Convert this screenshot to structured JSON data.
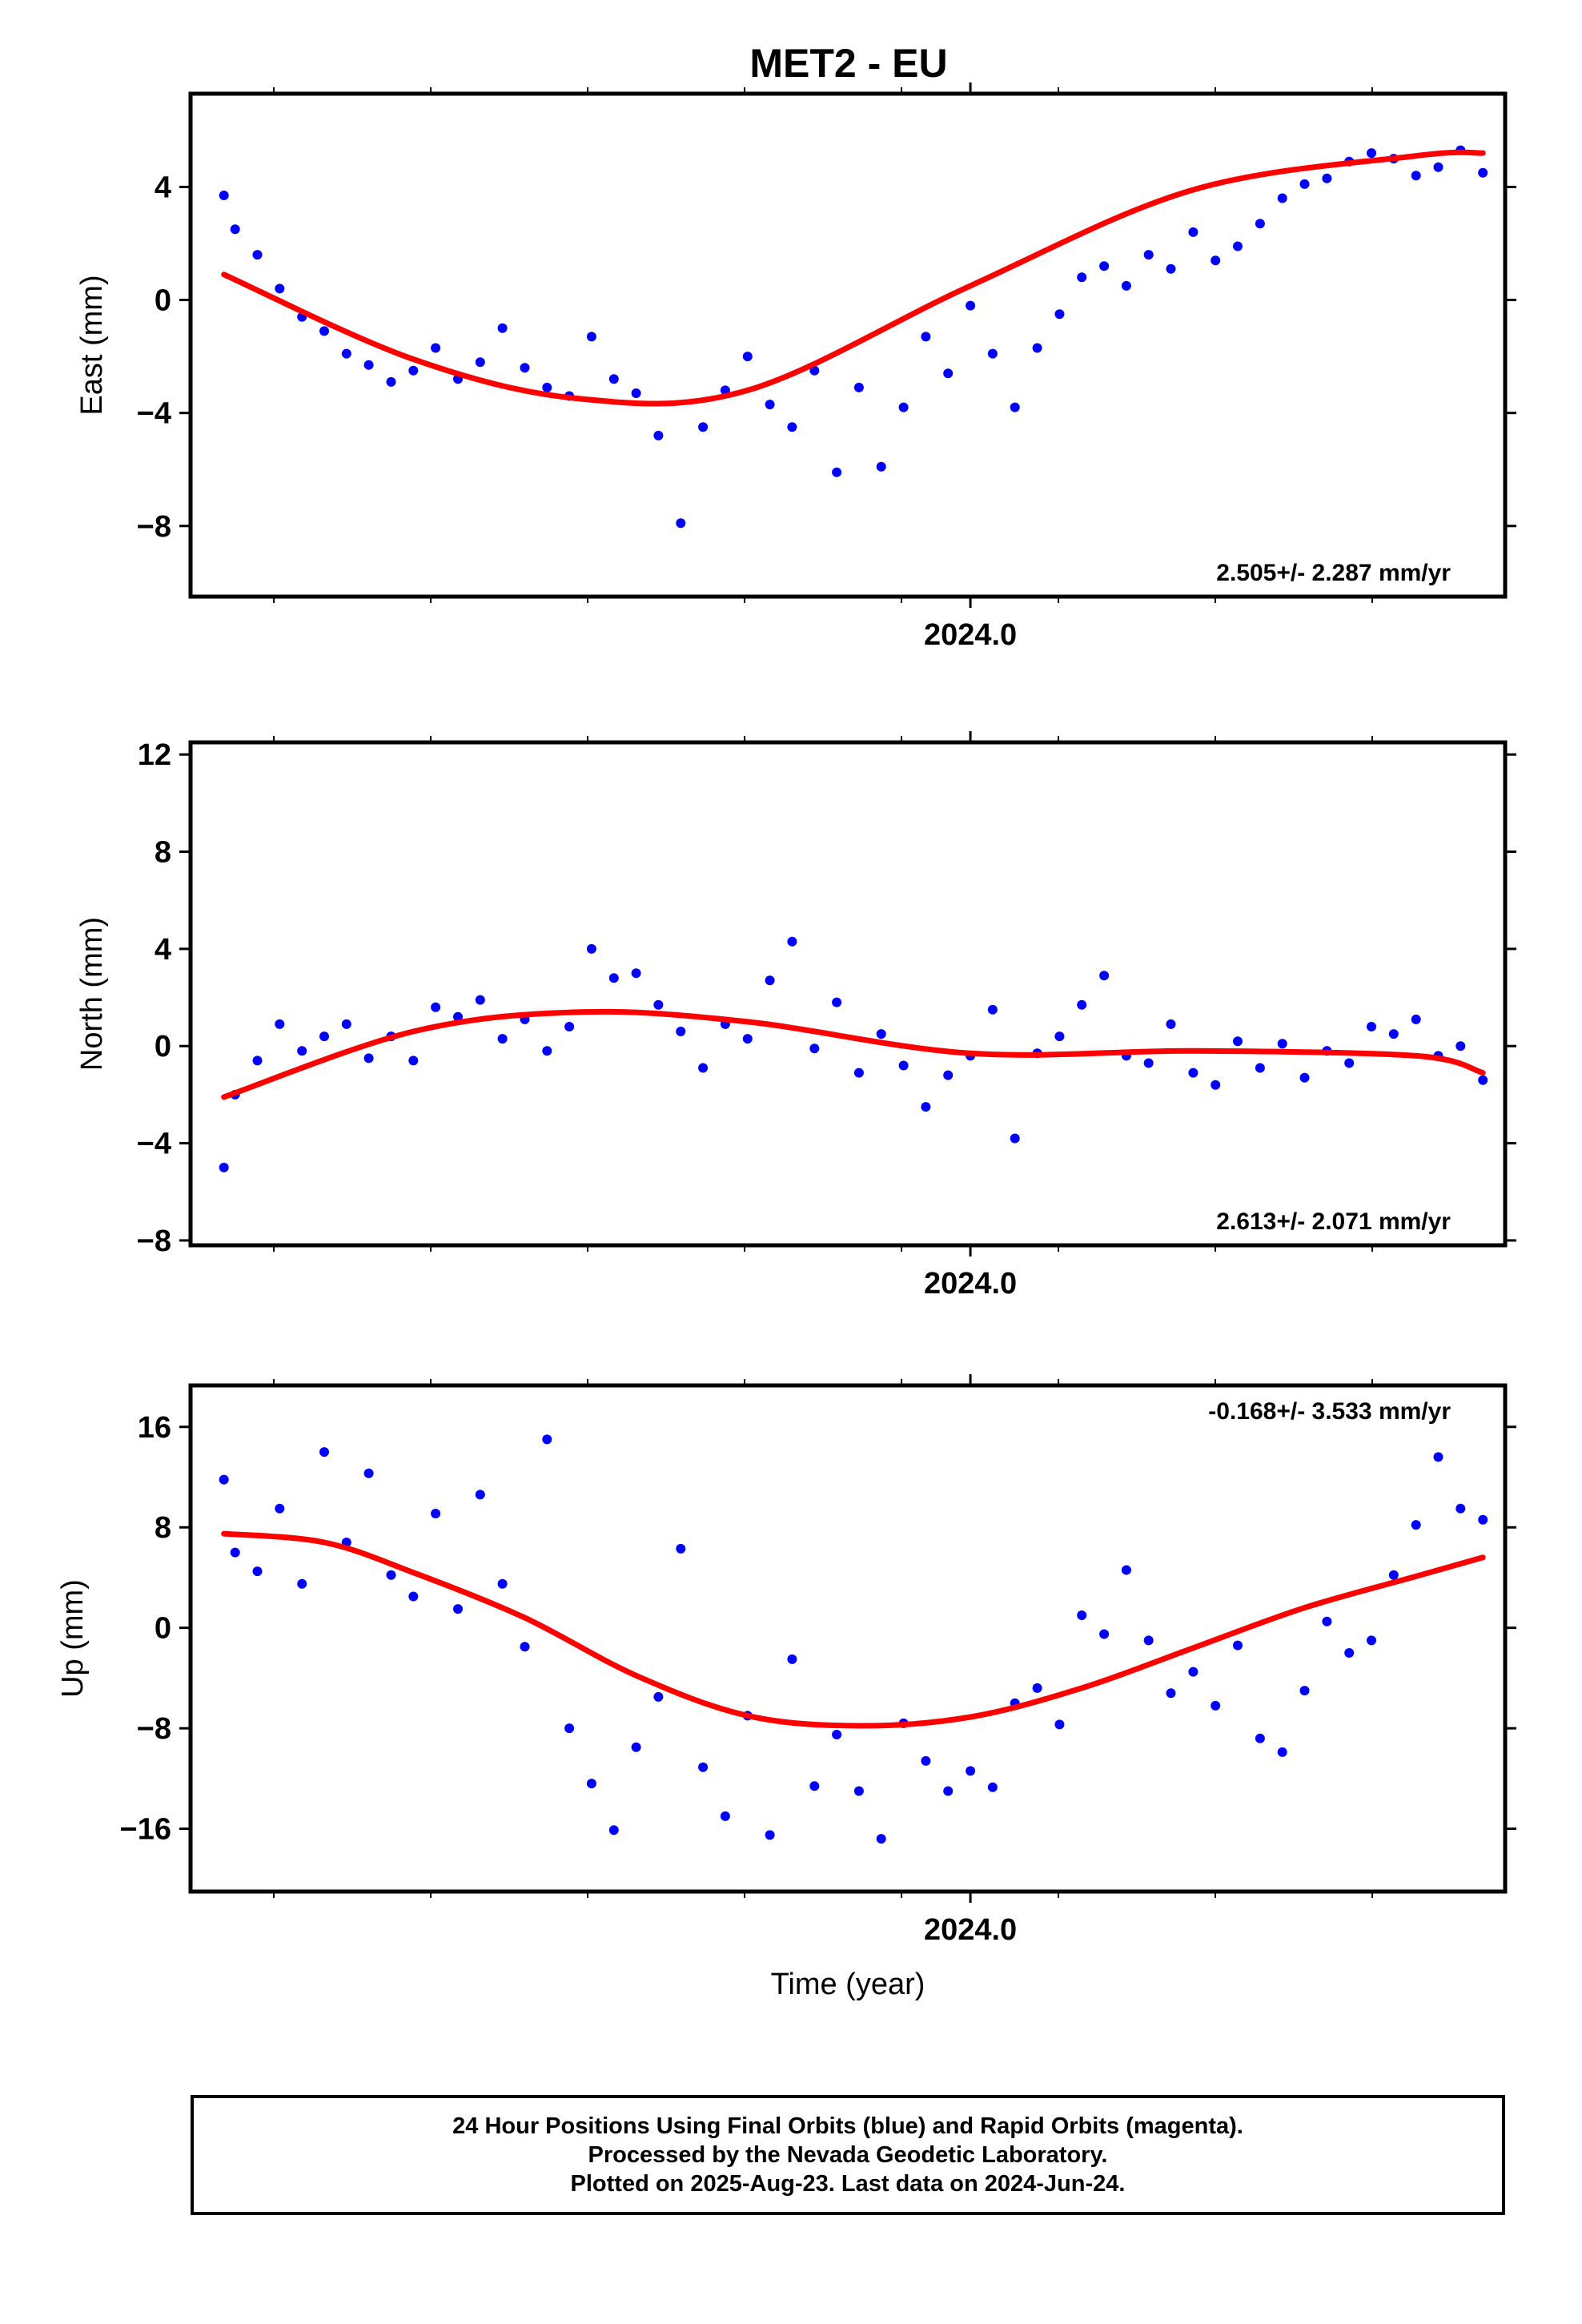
{
  "chart_data": {
    "type": "scatter",
    "title": "MET2 - EU",
    "xlabel": "Time (year)",
    "x_tick_label": "2024.0",
    "xlim": [
      2023.3,
      2024.48
    ],
    "panels": [
      {
        "ylabel": "East (mm)",
        "ylim": [
          -10.5,
          7.3
        ],
        "yticks": [
          4,
          0,
          -4,
          -8
        ],
        "yticks_labels": [
          "4",
          "0",
          "−4",
          "−8"
        ],
        "rate": "2.505+/- 2.287 mm/yr",
        "rate_position": "bottom-right",
        "fit_color": "#ff0000",
        "points_color": "#0000ff",
        "fit": {
          "x": [
            2023.33,
            2023.5,
            2023.65,
            2023.8,
            2024.0,
            2024.2,
            2024.4,
            2024.46
          ],
          "y": [
            0.9,
            -2.1,
            -3.5,
            -3.2,
            0.5,
            3.9,
            5.1,
            5.2
          ]
        },
        "points": {
          "x": [
            2023.33,
            2023.34,
            2023.36,
            2023.38,
            2023.4,
            2023.42,
            2023.44,
            2023.46,
            2023.48,
            2023.5,
            2023.52,
            2023.54,
            2023.56,
            2023.58,
            2023.6,
            2023.62,
            2023.64,
            2023.66,
            2023.68,
            2023.7,
            2023.72,
            2023.74,
            2023.76,
            2023.78,
            2023.8,
            2023.82,
            2023.84,
            2023.86,
            2023.88,
            2023.9,
            2023.92,
            2023.94,
            2023.96,
            2023.98,
            2024.0,
            2024.02,
            2024.04,
            2024.06,
            2024.08,
            2024.1,
            2024.12,
            2024.14,
            2024.16,
            2024.18,
            2024.2,
            2024.22,
            2024.24,
            2024.26,
            2024.28,
            2024.3,
            2024.32,
            2024.34,
            2024.36,
            2024.38,
            2024.4,
            2024.42,
            2024.44,
            2024.46
          ],
          "y": [
            3.7,
            2.5,
            1.6,
            0.4,
            -0.6,
            -1.1,
            -1.9,
            -2.3,
            -2.9,
            -2.5,
            -1.7,
            -2.8,
            -2.2,
            -1.0,
            -2.4,
            -3.1,
            -3.4,
            -1.3,
            -2.8,
            -3.3,
            -4.8,
            -7.9,
            -4.5,
            -3.2,
            -2.0,
            -3.7,
            -4.5,
            -2.5,
            -6.1,
            -3.1,
            -5.9,
            -3.8,
            -1.3,
            -2.6,
            -0.2,
            -1.9,
            -3.8,
            -1.7,
            -0.5,
            0.8,
            1.2,
            0.5,
            1.6,
            1.1,
            2.4,
            1.4,
            1.9,
            2.7,
            3.6,
            4.1,
            4.3,
            4.9,
            5.2,
            5.0,
            4.4,
            4.7,
            5.3,
            4.5
          ]
        }
      },
      {
        "ylabel": "North (mm)",
        "ylim": [
          -8.2,
          12.5
        ],
        "yticks": [
          12,
          8,
          4,
          0,
          -4,
          -8
        ],
        "yticks_labels": [
          "12",
          "8",
          "4",
          "0",
          "−4",
          "−8"
        ],
        "rate": "2.613+/- 2.071 mm/yr",
        "rate_position": "bottom-right",
        "fit_color": "#ff0000",
        "points_color": "#0000ff",
        "fit": {
          "x": [
            2023.33,
            2023.5,
            2023.65,
            2023.8,
            2024.0,
            2024.2,
            2024.4,
            2024.46
          ],
          "y": [
            -2.1,
            0.6,
            1.4,
            1.0,
            -0.3,
            -0.2,
            -0.4,
            -1.1
          ]
        },
        "points": {
          "x": [
            2023.33,
            2023.34,
            2023.36,
            2023.38,
            2023.4,
            2023.42,
            2023.44,
            2023.46,
            2023.48,
            2023.5,
            2023.52,
            2023.54,
            2023.56,
            2023.58,
            2023.6,
            2023.62,
            2023.64,
            2023.66,
            2023.68,
            2023.7,
            2023.72,
            2023.74,
            2023.76,
            2023.78,
            2023.8,
            2023.82,
            2023.84,
            2023.86,
            2023.88,
            2023.9,
            2023.92,
            2023.94,
            2023.96,
            2023.98,
            2024.0,
            2024.02,
            2024.04,
            2024.06,
            2024.08,
            2024.1,
            2024.12,
            2024.14,
            2024.16,
            2024.18,
            2024.2,
            2024.22,
            2024.24,
            2024.26,
            2024.28,
            2024.3,
            2024.32,
            2024.34,
            2024.36,
            2024.38,
            2024.4,
            2024.42,
            2024.44,
            2024.46
          ],
          "y": [
            -5.0,
            -2.0,
            -0.6,
            0.9,
            -0.2,
            0.4,
            0.9,
            -0.5,
            0.4,
            -0.6,
            1.6,
            1.2,
            1.9,
            0.3,
            1.1,
            -0.2,
            0.8,
            4.0,
            2.8,
            3.0,
            1.7,
            0.6,
            -0.9,
            0.9,
            0.3,
            2.7,
            4.3,
            -0.1,
            1.8,
            -1.1,
            0.5,
            -0.8,
            -2.5,
            -1.2,
            -0.4,
            1.5,
            -3.8,
            -0.3,
            0.4,
            1.7,
            2.9,
            -0.4,
            -0.7,
            0.9,
            -1.1,
            -1.6,
            0.2,
            -0.9,
            0.1,
            -1.3,
            -0.2,
            -0.7,
            0.8,
            0.5,
            1.1,
            -0.4,
            0.0,
            -1.4
          ]
        }
      },
      {
        "ylabel": "Up (mm)",
        "ylim": [
          -21.0,
          19.3
        ],
        "yticks": [
          16,
          8,
          0,
          -8,
          -16
        ],
        "yticks_labels": [
          "16",
          "8",
          "0",
          "−8",
          "−16"
        ],
        "rate": "-0.168+/- 3.533 mm/yr",
        "rate_position": "top-right",
        "fit_color": "#ff0000",
        "points_color": "#0000ff",
        "fit": {
          "x": [
            2023.33,
            2023.42,
            2023.5,
            2023.6,
            2023.7,
            2023.8,
            2023.9,
            2024.0,
            2024.1,
            2024.2,
            2024.3,
            2024.4,
            2024.46
          ],
          "y": [
            7.5,
            6.8,
            4.4,
            0.8,
            -3.8,
            -7.0,
            -7.8,
            -7.1,
            -4.8,
            -1.6,
            1.6,
            4.1,
            5.6
          ]
        },
        "points": {
          "x": [
            2023.33,
            2023.34,
            2023.36,
            2023.38,
            2023.4,
            2023.42,
            2023.44,
            2023.46,
            2023.48,
            2023.5,
            2023.52,
            2023.54,
            2023.56,
            2023.58,
            2023.6,
            2023.62,
            2023.64,
            2023.66,
            2023.68,
            2023.7,
            2023.72,
            2023.74,
            2023.76,
            2023.78,
            2023.8,
            2023.82,
            2023.84,
            2023.86,
            2023.88,
            2023.9,
            2023.92,
            2023.94,
            2023.96,
            2023.98,
            2024.0,
            2024.02,
            2024.04,
            2024.06,
            2024.08,
            2024.1,
            2024.12,
            2024.14,
            2024.16,
            2024.18,
            2024.2,
            2024.22,
            2024.24,
            2024.26,
            2024.28,
            2024.3,
            2024.32,
            2024.34,
            2024.36,
            2024.38,
            2024.4,
            2024.42,
            2024.44,
            2024.46
          ],
          "y": [
            11.8,
            6.0,
            4.5,
            9.5,
            3.5,
            14.0,
            6.8,
            12.3,
            4.2,
            2.5,
            9.1,
            1.5,
            10.6,
            3.5,
            -1.5,
            15.0,
            -8.0,
            -12.4,
            -16.1,
            -9.5,
            -5.5,
            6.3,
            -11.1,
            -15.0,
            -7.0,
            -16.5,
            -2.5,
            -12.6,
            -8.5,
            -13.0,
            -16.8,
            -7.6,
            -10.6,
            -13.0,
            -11.4,
            -12.7,
            -6.0,
            -4.8,
            -7.7,
            1.0,
            -0.5,
            4.6,
            -1.0,
            -5.2,
            -3.5,
            -6.2,
            -1.4,
            -8.8,
            -9.9,
            -5.0,
            0.5,
            -2.0,
            -1.0,
            4.2,
            8.2,
            13.6,
            9.5,
            8.6
          ]
        }
      }
    ]
  },
  "footer": {
    "line1": "24 Hour Positions Using Final Orbits (blue) and Rapid Orbits (magenta).",
    "line2": "Processed by the Nevada Geodetic Laboratory.",
    "line3": "Plotted on 2025-Aug-23. Last data on 2024-Jun-24."
  }
}
